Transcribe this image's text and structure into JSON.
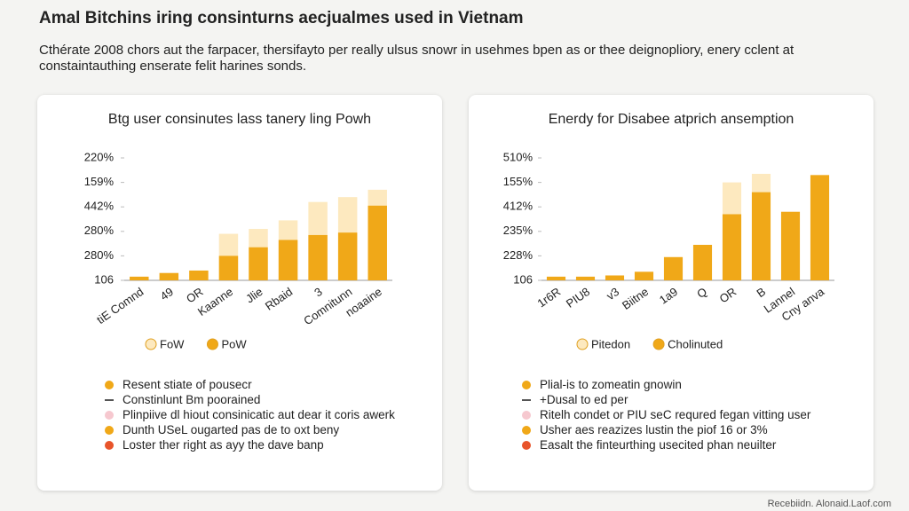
{
  "header": {
    "title": "Amal Bitchins iring consinturns aecjualmes used in Vietnam",
    "subtitle": "Cthérate 2008 chors aut the farpacer, thersifayto per really ulsus snowr in usehmes bpen as or thee deignopliory, enery cclent at constaintauthing enserate felit harines sonds."
  },
  "chart_data": [
    {
      "type": "bar",
      "title": "Btg user consinutes lass tanery ling Powh",
      "categories": [
        "tiE Comnd",
        "49",
        "OR",
        "Kaanne",
        "Jlie",
        "Rbaid",
        "3",
        "Comnitunn",
        "noaaine"
      ],
      "series": [
        {
          "name": "FoW",
          "color": "#fde9bf",
          "values": [
            null,
            null,
            null,
            1.9,
            2.1,
            2.45,
            3.2,
            3.4,
            3.7
          ]
        },
        {
          "name": "PoW",
          "color": "#f0a818",
          "values": [
            0.15,
            0.3,
            0.4,
            1.0,
            1.35,
            1.65,
            1.85,
            1.95,
            3.05
          ]
        }
      ],
      "ylim": [
        0,
        5
      ],
      "yticks": [
        {
          "value": 0,
          "label": "106"
        },
        {
          "value": 1,
          "label": "280%"
        },
        {
          "value": 2,
          "label": "280%"
        },
        {
          "value": 3,
          "label": "442%"
        },
        {
          "value": 4,
          "label": "159%"
        },
        {
          "value": 5,
          "label": "220%"
        }
      ]
    },
    {
      "type": "bar",
      "title": "Enerdy for Disabee atprich ansemption",
      "categories": [
        "1r6R",
        "PIU8",
        "v3",
        "Biitne",
        "1a9",
        "Q",
        "OR",
        "B",
        "Lannel",
        "Cny anva"
      ],
      "series": [
        {
          "name": "Pitedon",
          "color": "#fde9bf",
          "values": [
            null,
            null,
            null,
            null,
            null,
            null,
            4.0,
            4.35,
            null,
            null
          ]
        },
        {
          "name": "Cholinuted",
          "color": "#f0a818",
          "values": [
            0.15,
            0.15,
            0.2,
            0.35,
            0.95,
            1.45,
            2.7,
            3.6,
            2.8,
            4.3
          ]
        }
      ],
      "ylim": [
        0,
        5
      ],
      "yticks": [
        {
          "value": 0,
          "label": "106"
        },
        {
          "value": 1,
          "label": "228%"
        },
        {
          "value": 2,
          "label": "235%"
        },
        {
          "value": 3,
          "label": "412%"
        },
        {
          "value": 4,
          "label": "155%"
        },
        {
          "value": 5,
          "label": "510%"
        }
      ]
    }
  ],
  "notes": [
    [
      "Resent stiate of pousecr",
      "Constinlunt Bm poorained",
      "Plinpiive dl hiout consinicatic aut dear it coris awerk",
      "Dunth USeL ougarted pas de to oxt beny",
      "Loster ther right as ayy the dave banp"
    ],
    [
      "Plial-is to zomeatin gnowin",
      "+Dusal to ed per",
      "Ritelh condet or PIU seC requred fegan vitting user",
      "Usher aes reazizes lustin the piof 16 or 3%",
      "Easalt the finteurthing usecited phan neuilter"
    ]
  ],
  "footer": "Recebiidn. Alonaid.Laof.com"
}
